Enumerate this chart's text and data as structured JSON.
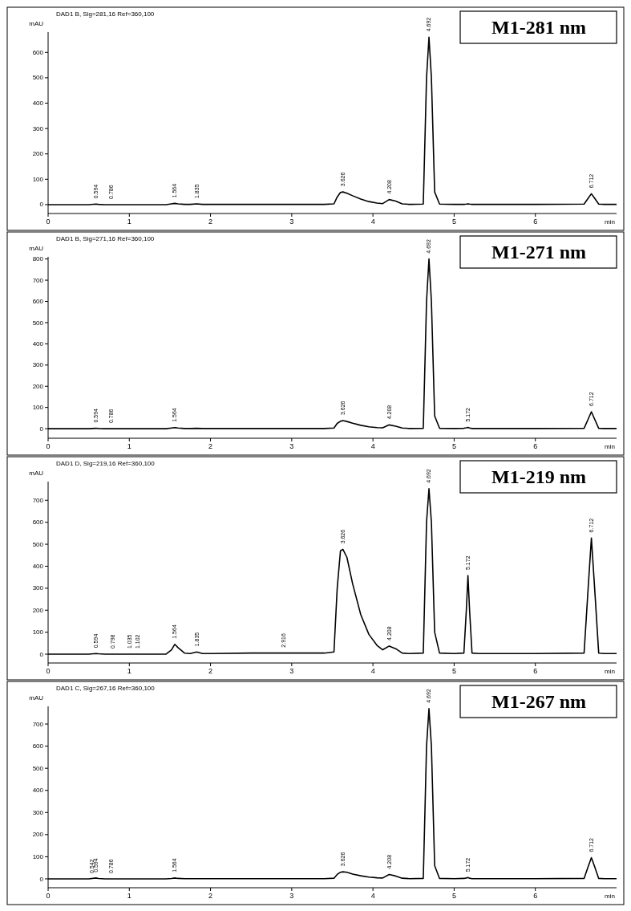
{
  "chart_data": [
    {
      "type": "line",
      "title": "M1-281 nm",
      "subtitle": "DAD1 B, Sig=281,16 Ref=360,100",
      "xlabel": "min",
      "ylabel": "mAU",
      "xlim": [
        0,
        7
      ],
      "xticks": [
        0,
        1,
        2,
        3,
        4,
        5,
        6
      ],
      "ylim": [
        -35,
        680
      ],
      "yticks": [
        0,
        100,
        200,
        300,
        400,
        500,
        600
      ],
      "x": [
        0,
        0.5,
        0.59,
        0.62,
        0.7,
        0.8,
        1.0,
        1.1,
        1.2,
        1.45,
        1.52,
        1.56,
        1.6,
        1.68,
        1.75,
        1.83,
        1.9,
        2.0,
        2.5,
        2.9,
        3.4,
        3.52,
        3.56,
        3.6,
        3.63,
        3.68,
        3.75,
        3.85,
        3.95,
        4.05,
        4.12,
        4.2,
        4.28,
        4.36,
        4.45,
        4.62,
        4.66,
        4.69,
        4.72,
        4.76,
        4.82,
        5.0,
        5.12,
        5.15,
        5.17,
        5.19,
        5.22,
        5.3,
        6.0,
        6.6,
        6.65,
        6.69,
        6.73,
        6.78,
        6.85,
        7.0
      ],
      "series": [
        {
          "color": "#000000",
          "values": [
            0,
            0,
            2,
            1,
            0,
            0,
            0,
            0,
            0,
            0,
            3,
            5,
            3,
            1,
            1,
            3,
            1,
            1,
            1,
            1,
            1,
            3,
            30,
            48,
            50,
            45,
            35,
            22,
            12,
            6,
            4,
            20,
            14,
            3,
            1,
            2,
            500,
            660,
            500,
            50,
            2,
            1,
            1,
            2,
            3,
            2,
            1,
            1,
            1,
            2,
            25,
            43,
            25,
            2,
            1,
            1
          ]
        }
      ],
      "annotations": [
        {
          "text": "0.594",
          "x": 0.59,
          "y": 2
        },
        {
          "text": "0.786",
          "x": 0.78,
          "y": 0
        },
        {
          "text": "1.564",
          "x": 1.56,
          "y": 5
        },
        {
          "text": "1.835",
          "x": 1.83,
          "y": 3
        },
        {
          "text": "3.626",
          "x": 3.63,
          "y": 50
        },
        {
          "text": "4.208",
          "x": 4.2,
          "y": 20
        },
        {
          "text": "4.692",
          "x": 4.69,
          "y": 660
        },
        {
          "text": "6.712",
          "x": 6.69,
          "y": 43
        }
      ]
    },
    {
      "type": "line",
      "title": "M1-271 nm",
      "subtitle": "DAD1 B, Sig=271,16 Ref=360,100",
      "xlabel": "min",
      "ylabel": "mAU",
      "xlim": [
        0,
        7
      ],
      "xticks": [
        0,
        1,
        2,
        3,
        4,
        5,
        6
      ],
      "ylim": [
        -45,
        810
      ],
      "yticks": [
        0,
        100,
        200,
        300,
        400,
        500,
        600,
        700,
        800
      ],
      "x": [
        0,
        0.5,
        0.59,
        0.62,
        0.7,
        0.8,
        1.0,
        1.1,
        1.2,
        1.45,
        1.52,
        1.56,
        1.6,
        1.68,
        1.75,
        1.83,
        1.9,
        2.0,
        2.5,
        2.9,
        3.4,
        3.52,
        3.56,
        3.6,
        3.63,
        3.68,
        3.75,
        3.85,
        3.95,
        4.05,
        4.12,
        4.2,
        4.28,
        4.36,
        4.45,
        4.62,
        4.66,
        4.69,
        4.72,
        4.76,
        4.82,
        5.0,
        5.12,
        5.15,
        5.17,
        5.19,
        5.22,
        5.3,
        6.0,
        6.6,
        6.65,
        6.69,
        6.73,
        6.78,
        6.85,
        7.0
      ],
      "series": [
        {
          "color": "#000000",
          "values": [
            0,
            0,
            2,
            1,
            0,
            0,
            0,
            0,
            0,
            0,
            3,
            5,
            3,
            1,
            1,
            2,
            1,
            1,
            1,
            1,
            1,
            3,
            25,
            35,
            38,
            34,
            26,
            16,
            9,
            5,
            4,
            18,
            12,
            3,
            1,
            2,
            600,
            800,
            600,
            60,
            2,
            1,
            2,
            4,
            6,
            3,
            1,
            1,
            1,
            2,
            45,
            80,
            45,
            2,
            1,
            1
          ]
        }
      ],
      "annotations": [
        {
          "text": "0.594",
          "x": 0.59,
          "y": 2
        },
        {
          "text": "0.786",
          "x": 0.78,
          "y": 0
        },
        {
          "text": "1.564",
          "x": 1.56,
          "y": 5
        },
        {
          "text": "3.626",
          "x": 3.63,
          "y": 38
        },
        {
          "text": "4.208",
          "x": 4.2,
          "y": 18
        },
        {
          "text": "4.692",
          "x": 4.69,
          "y": 800
        },
        {
          "text": "5.172",
          "x": 5.17,
          "y": 6
        },
        {
          "text": "6.712",
          "x": 6.69,
          "y": 80
        }
      ]
    },
    {
      "type": "line",
      "title": "M1-219 nm",
      "subtitle": "DAD1 D, Sig=219,16 Ref=360,100",
      "xlabel": "min",
      "ylabel": "mAU",
      "xlim": [
        0,
        7
      ],
      "xticks": [
        0,
        1,
        2,
        3,
        4,
        5,
        6
      ],
      "ylim": [
        -40,
        785
      ],
      "yticks": [
        0,
        100,
        200,
        300,
        400,
        500,
        600,
        700
      ],
      "x": [
        0,
        0.5,
        0.59,
        0.62,
        0.7,
        0.8,
        1.0,
        1.1,
        1.2,
        1.45,
        1.52,
        1.56,
        1.6,
        1.68,
        1.75,
        1.83,
        1.9,
        2.0,
        2.5,
        2.9,
        3.4,
        3.52,
        3.56,
        3.6,
        3.63,
        3.68,
        3.75,
        3.85,
        3.95,
        4.05,
        4.12,
        4.2,
        4.28,
        4.36,
        4.45,
        4.62,
        4.66,
        4.69,
        4.72,
        4.76,
        4.82,
        5.0,
        5.12,
        5.15,
        5.17,
        5.19,
        5.22,
        5.3,
        6.0,
        6.6,
        6.65,
        6.69,
        6.73,
        6.78,
        6.85,
        7.0
      ],
      "series": [
        {
          "color": "#000000",
          "values": [
            0,
            0,
            3,
            2,
            0,
            0,
            0,
            0,
            0,
            0,
            20,
            45,
            30,
            5,
            3,
            10,
            3,
            3,
            5,
            5,
            5,
            10,
            300,
            470,
            477,
            440,
            320,
            180,
            90,
            40,
            20,
            37,
            25,
            5,
            3,
            5,
            600,
            753,
            600,
            100,
            5,
            3,
            5,
            200,
            358,
            200,
            5,
            3,
            3,
            5,
            300,
            528,
            300,
            5,
            3,
            3
          ]
        }
      ],
      "annotations": [
        {
          "text": "0.594",
          "x": 0.59,
          "y": 3
        },
        {
          "text": "0.798",
          "x": 0.8,
          "y": 0
        },
        {
          "text": "1.035",
          "x": 1.0,
          "y": 0
        },
        {
          "text": "1.102",
          "x": 1.1,
          "y": 0
        },
        {
          "text": "1.564",
          "x": 1.56,
          "y": 45
        },
        {
          "text": "1.835",
          "x": 1.83,
          "y": 10
        },
        {
          "text": "2.916",
          "x": 2.9,
          "y": 5
        },
        {
          "text": "3.626",
          "x": 3.63,
          "y": 477
        },
        {
          "text": "4.208",
          "x": 4.2,
          "y": 37
        },
        {
          "text": "4.692",
          "x": 4.69,
          "y": 753
        },
        {
          "text": "5.172",
          "x": 5.17,
          "y": 358
        },
        {
          "text": "6.712",
          "x": 6.69,
          "y": 528
        }
      ]
    },
    {
      "type": "line",
      "title": "M1-267 nm",
      "subtitle": "DAD1 C, Sig=267,16 Ref=360,100",
      "xlabel": "min",
      "ylabel": "mAU",
      "xlim": [
        0,
        7
      ],
      "xticks": [
        0,
        1,
        2,
        3,
        4,
        5,
        6
      ],
      "ylim": [
        -40,
        780
      ],
      "yticks": [
        0,
        100,
        200,
        300,
        400,
        500,
        600,
        700
      ],
      "x": [
        0,
        0.5,
        0.59,
        0.62,
        0.7,
        0.8,
        1.0,
        1.1,
        1.2,
        1.45,
        1.52,
        1.56,
        1.6,
        1.68,
        1.75,
        1.83,
        1.9,
        2.0,
        2.5,
        2.9,
        3.4,
        3.52,
        3.56,
        3.6,
        3.63,
        3.68,
        3.75,
        3.85,
        3.95,
        4.05,
        4.12,
        4.2,
        4.28,
        4.36,
        4.45,
        4.62,
        4.66,
        4.69,
        4.72,
        4.76,
        4.82,
        5.0,
        5.12,
        5.15,
        5.17,
        5.19,
        5.22,
        5.3,
        6.0,
        6.6,
        6.65,
        6.69,
        6.73,
        6.78,
        6.85,
        7.0
      ],
      "series": [
        {
          "color": "#000000",
          "values": [
            0,
            0,
            4,
            2,
            0,
            0,
            0,
            0,
            0,
            0,
            2,
            4,
            2,
            1,
            1,
            1,
            1,
            1,
            1,
            1,
            1,
            3,
            20,
            30,
            32,
            30,
            22,
            14,
            8,
            5,
            4,
            20,
            13,
            3,
            1,
            2,
            600,
            770,
            600,
            60,
            2,
            1,
            2,
            4,
            6,
            3,
            1,
            1,
            1,
            2,
            55,
            96,
            55,
            2,
            1,
            1
          ]
        }
      ],
      "annotations": [
        {
          "text": "0.542",
          "x": 0.54,
          "y": 0
        },
        {
          "text": "0.594",
          "x": 0.59,
          "y": 4
        },
        {
          "text": "0.786",
          "x": 0.78,
          "y": 0
        },
        {
          "text": "1.564",
          "x": 1.56,
          "y": 4
        },
        {
          "text": "3.626",
          "x": 3.63,
          "y": 32
        },
        {
          "text": "4.208",
          "x": 4.2,
          "y": 20
        },
        {
          "text": "4.692",
          "x": 4.69,
          "y": 770
        },
        {
          "text": "5.172",
          "x": 5.17,
          "y": 6
        },
        {
          "text": "6.712",
          "x": 6.69,
          "y": 96
        }
      ]
    }
  ]
}
